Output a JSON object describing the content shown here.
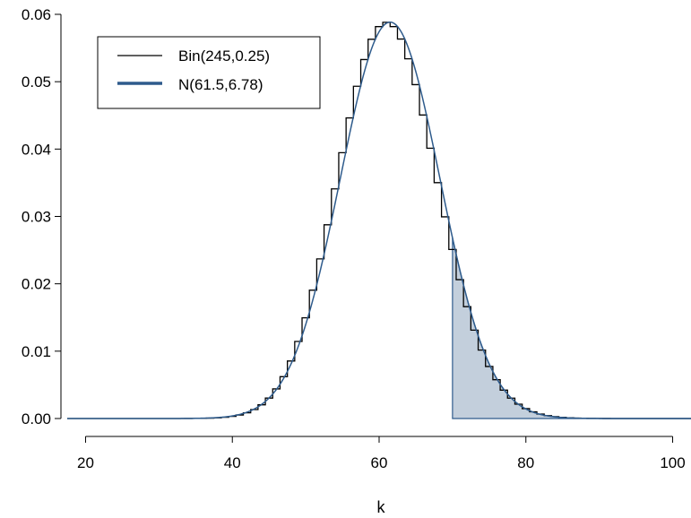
{
  "chart_data": {
    "type": "line",
    "title": "",
    "xlabel": "k",
    "ylabel": "",
    "xlim": [
      17.5,
      102.5
    ],
    "ylim": [
      0,
      0.06
    ],
    "x_ticks": [
      20,
      40,
      60,
      80,
      100
    ],
    "x_tick_labels": [
      "20",
      "40",
      "60",
      "80",
      "100"
    ],
    "y_ticks": [
      0,
      0.01,
      0.02,
      0.03,
      0.04,
      0.05,
      0.06
    ],
    "y_tick_labels": [
      "0.00",
      "0.01",
      "0.02",
      "0.03",
      "0.04",
      "0.05",
      "0.06"
    ],
    "grid": false,
    "legend_position": "top-left",
    "series": [
      {
        "name": "Bin(245,0.25)",
        "kind": "step",
        "n": 245,
        "p": 0.25,
        "color": "#000000"
      },
      {
        "name": "N(61.5,6.78)",
        "kind": "curve",
        "mean": 61.5,
        "sd": 6.78,
        "color": "#2e5b8c"
      }
    ],
    "shaded_region": {
      "from": 70,
      "to": 102.5,
      "fill": "#c3cfdc",
      "stroke": "#2e5b8c"
    }
  }
}
